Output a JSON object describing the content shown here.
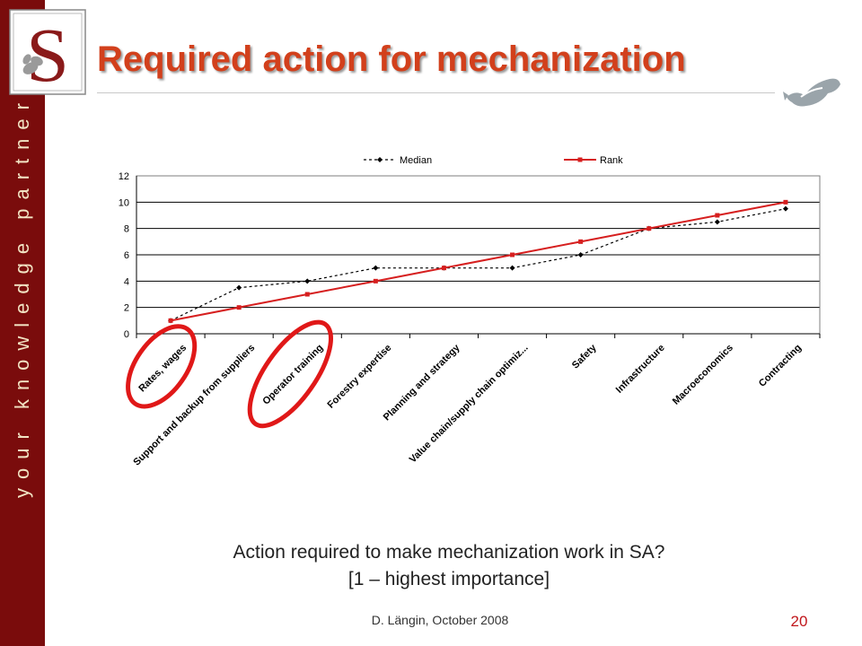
{
  "slide": {
    "title": "Required action for mechanization",
    "tagline": "your knowledge partner",
    "caption_line1": "Action required to make mechanization work in SA?",
    "caption_line2": "[1 – highest importance]",
    "footer": "D. Längin, October 2008",
    "page_number": "20",
    "logo_icon": "stellenbosch-s-crest-icon",
    "fish_icon": "fish-icon",
    "colors": {
      "sidebar": "#7a0c0c",
      "title": "#d2401c",
      "rank_line": "#d61f1f",
      "median_line": "#000000",
      "highlight": "#e01818"
    }
  },
  "chart_data": {
    "type": "line",
    "categories": [
      "Rates, wages",
      "Support and backup from suppliers",
      "Operator training",
      "Forestry expertise",
      "Planning and strategy",
      "Value chain/supply chain optimiz...",
      "Safety",
      "Infrastructure",
      "Macroeconomics",
      "Contracting"
    ],
    "series": [
      {
        "name": "Median",
        "values": [
          1,
          3.5,
          4,
          5,
          5,
          5,
          6,
          8,
          8.5,
          9.5
        ],
        "style": "dotted",
        "color": "#000000",
        "marker": "diamond"
      },
      {
        "name": "Rank",
        "values": [
          1,
          2,
          3,
          4,
          5,
          6,
          7,
          8,
          9,
          10
        ],
        "style": "solid",
        "color": "#d61f1f",
        "marker": "square"
      }
    ],
    "ylim": [
      0,
      12
    ],
    "yticks": [
      "0",
      "2",
      "4",
      "6",
      "8",
      "10",
      "12"
    ],
    "grid": true,
    "legend_position": "top",
    "highlighted_categories": [
      "Rates, wages",
      "Operator training"
    ]
  }
}
